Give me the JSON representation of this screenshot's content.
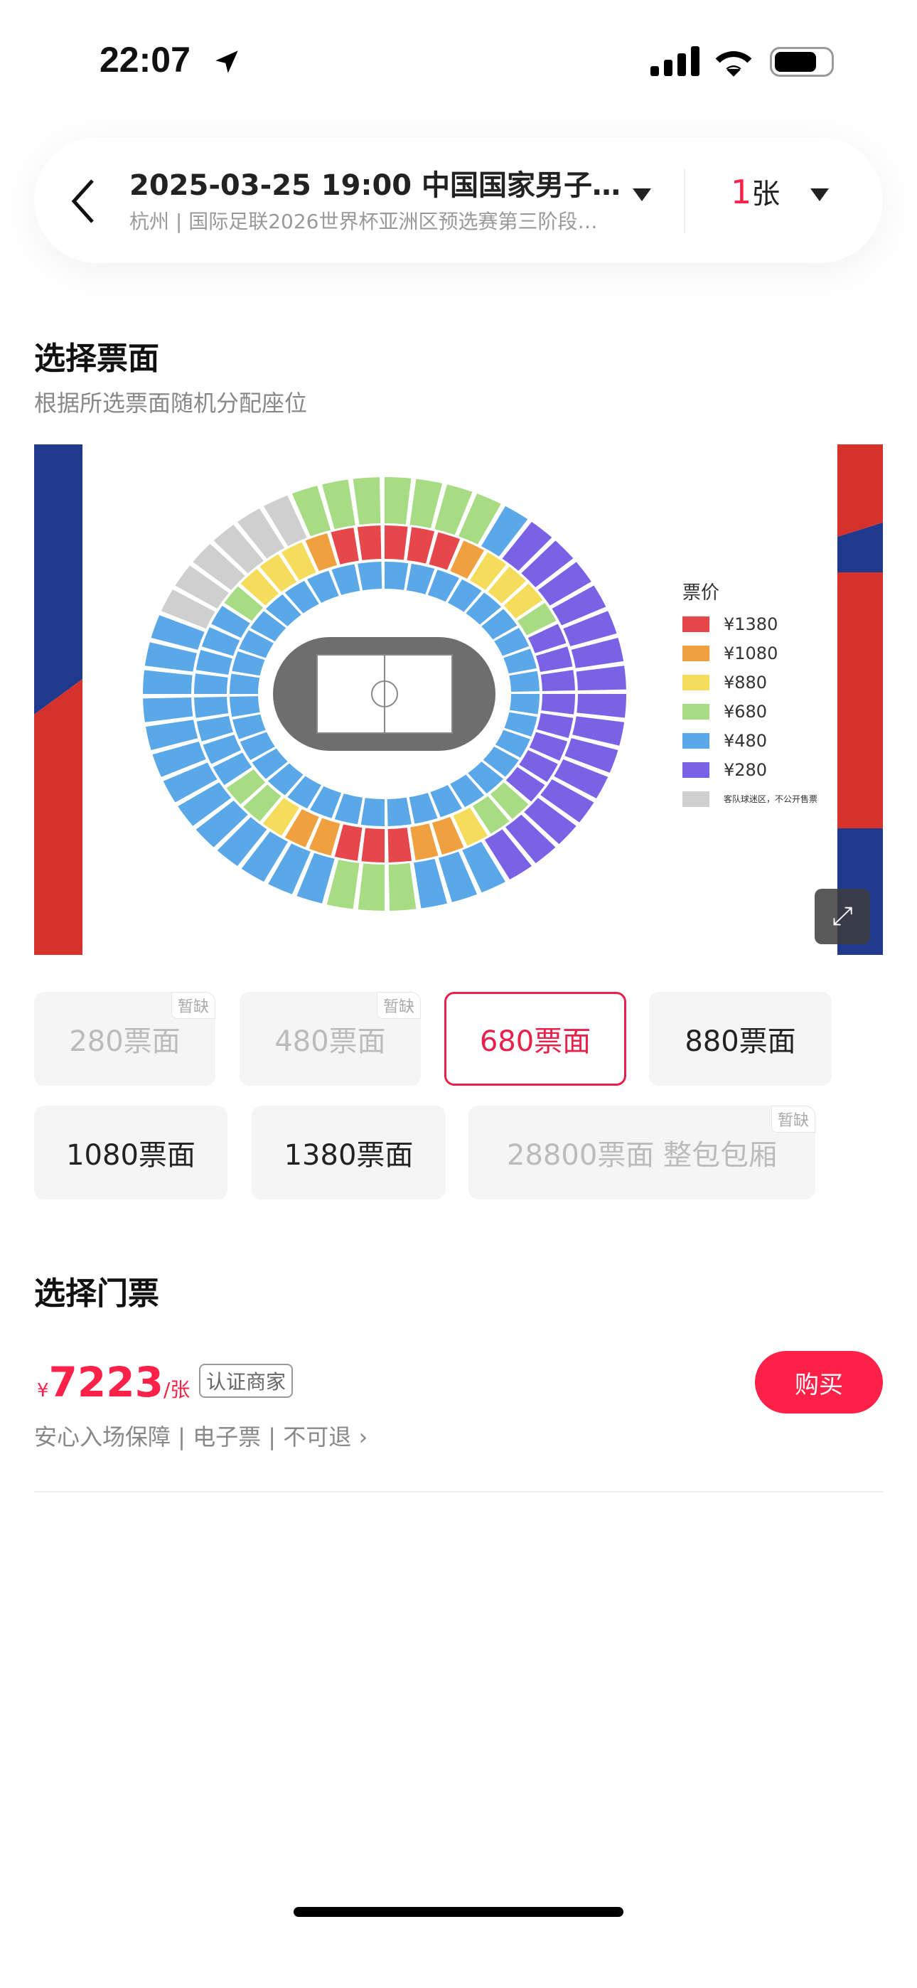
{
  "status_bar": {
    "time": "22:07"
  },
  "header": {
    "title": "2025-03-25 19:00 中国国家男子…",
    "subtitle": "杭州 | 国际足联2026世界杯亚洲区预选赛第三阶段…",
    "qty": "1",
    "qty_unit": "张"
  },
  "ticket_section": {
    "title": "选择票面",
    "subtitle": "根据所选票面随机分配座位"
  },
  "map": {
    "legend_title": "票价",
    "legend": [
      {
        "label": "¥1380",
        "color": "#e5474a"
      },
      {
        "label": "¥1080",
        "color": "#f0a03e"
      },
      {
        "label": "¥880",
        "color": "#f5dc5a"
      },
      {
        "label": "¥680",
        "color": "#a8dc84"
      },
      {
        "label": "¥480",
        "color": "#5aa8e8"
      },
      {
        "label": "¥280",
        "color": "#7a62e6"
      },
      {
        "label": "客队球迷区，不公开售票",
        "color": "#cfcfcf"
      }
    ]
  },
  "price_options": [
    {
      "label": "280票面",
      "state": "soldout",
      "badge": "暂缺"
    },
    {
      "label": "480票面",
      "state": "soldout",
      "badge": "暂缺"
    },
    {
      "label": "680票面",
      "state": "selected"
    },
    {
      "label": "880票面",
      "state": "available"
    },
    {
      "label": "1080票面",
      "state": "available"
    },
    {
      "label": "1380票面",
      "state": "available"
    },
    {
      "label": "28800票面 整包包厢",
      "state": "soldout",
      "badge": "暂缺"
    }
  ],
  "tickets_section": {
    "title": "选择门票"
  },
  "listing": {
    "currency": "¥",
    "price": "7223",
    "unit": "/张",
    "seller_badge": "认证商家",
    "features": "安心入场保障 | 电子票 | 不可退",
    "buy_label": "购买"
  },
  "colors": {
    "accent": "#ff2147"
  }
}
